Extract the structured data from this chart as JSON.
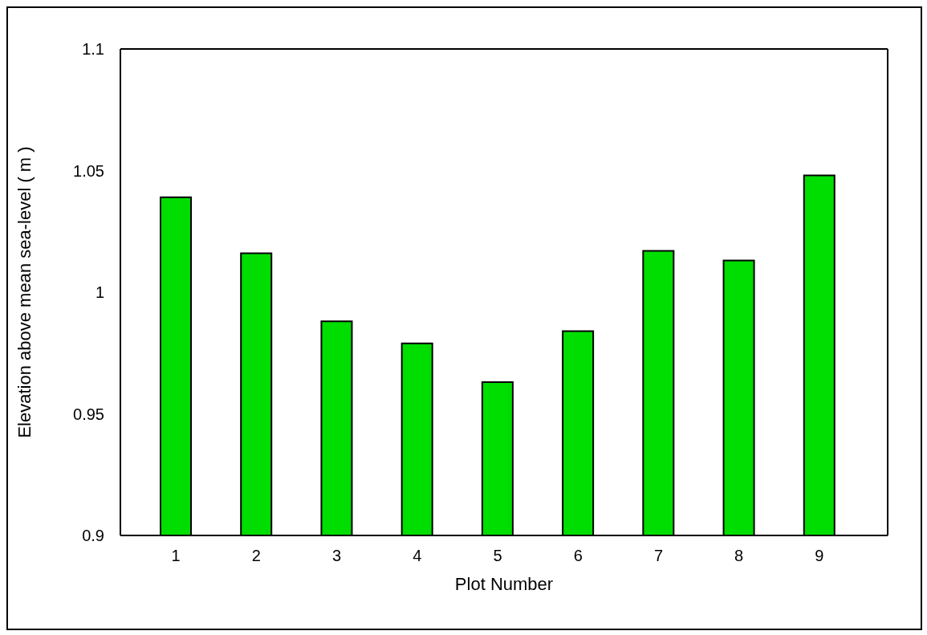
{
  "chart_data": {
    "type": "bar",
    "xlabel": "Plot Number",
    "ylabel": "Elevation above mean sea-level ( m )",
    "categories": [
      "1",
      "2",
      "3",
      "4",
      "5",
      "6",
      "7",
      "8",
      "9"
    ],
    "values": [
      1.039,
      1.016,
      0.988,
      0.979,
      0.963,
      0.984,
      1.017,
      1.013,
      1.048
    ],
    "color": "#00dd00",
    "ylim": [
      0.9,
      1.1
    ],
    "yticks": [
      0.9,
      0.95,
      1,
      1.05,
      1.1
    ]
  }
}
